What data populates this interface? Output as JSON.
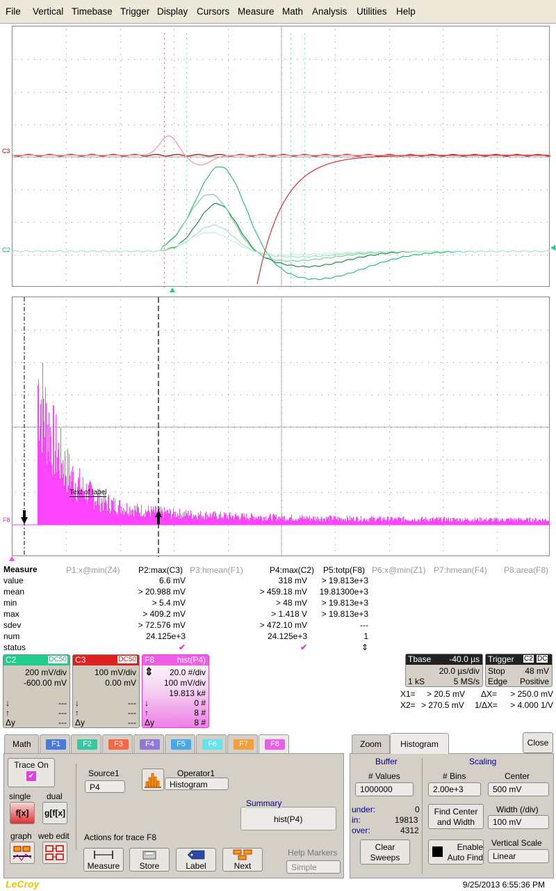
{
  "menu": [
    "File",
    "Vertical",
    "Timebase",
    "Trigger",
    "Display",
    "Cursors",
    "Measure",
    "Math",
    "Analysis",
    "Utilities",
    "Help"
  ],
  "traces": {
    "c3_label": "C3",
    "c2_label": "C2",
    "f8_label": "F8",
    "hist_annotation": "Text of label"
  },
  "measure": {
    "title": "Measure",
    "row_labels": [
      "value",
      "mean",
      "min",
      "max",
      "sdev",
      "num",
      "status"
    ],
    "columns": [
      {
        "header": "P1:x@min(Z4)",
        "active": false,
        "cells": [
          "",
          "",
          "",
          "",
          "",
          "",
          ""
        ]
      },
      {
        "header": "P2:max(C3)",
        "active": true,
        "cells": [
          "6.6 mV",
          "> 20.988 mV",
          "> 5.4 mV",
          "> 409.2 mV",
          "> 72.576 mV",
          "24.125e+3",
          "✔"
        ]
      },
      {
        "header": "P3:hmean(F1)",
        "active": false,
        "cells": [
          "",
          "",
          "",
          "",
          "",
          "",
          ""
        ]
      },
      {
        "header": "P4:max(C2)",
        "active": true,
        "cells": [
          "318 mV",
          "> 459.18 mV",
          "> 48 mV",
          "> 1.418 V",
          "> 472.10 mV",
          "24.125e+3",
          "✔"
        ]
      },
      {
        "header": "P5:totp(F8)",
        "active": true,
        "cells": [
          "> 19.813e+3",
          "19.81300e+3",
          "> 19.813e+3",
          "> 19.813e+3",
          "---",
          "1",
          "⇕"
        ]
      },
      {
        "header": "P6:x@min(Z1)",
        "active": false,
        "cells": [
          "",
          "",
          "",
          "",
          "",
          "",
          ""
        ]
      },
      {
        "header": "P7:hmean(F4)",
        "active": false,
        "cells": [
          "",
          "",
          "",
          "",
          "",
          "",
          ""
        ]
      },
      {
        "header": "P8:area(F8)",
        "active": false,
        "cells": [
          "",
          "",
          "",
          "",
          "",
          "",
          ""
        ]
      }
    ]
  },
  "descriptors": {
    "c2": {
      "name": "C2",
      "coupling": "DC50",
      "vdiv": "200 mV/div",
      "offset": "-600.00 mV",
      "down": "---",
      "up": "---",
      "dy": "---",
      "color": "#1fce8b"
    },
    "c3": {
      "name": "C3",
      "coupling": "DC50",
      "vdiv": "100 mV/div",
      "offset": "0.00 mV",
      "down": "---",
      "up": "---",
      "dy": "---",
      "color": "#e0201e"
    },
    "f8": {
      "name": "F8",
      "func": "hist(P4)",
      "l1": "20.0 #/div",
      "l2": "100 mV/div",
      "l3": "19.813 k#",
      "down": "0 #",
      "up": "8 #",
      "dy": "8 #",
      "color": "#ff44ff"
    }
  },
  "tbase": {
    "label": "Tbase",
    "delay": "-40.0 µs",
    "tdiv": "20.0 µs/div",
    "samples": "1 kS",
    "rate": "5 MS/s"
  },
  "trigger": {
    "label": "Trigger",
    "src": "C2",
    "coupling": "DC",
    "mode": "Stop",
    "level": "48 mV",
    "type": "Edge",
    "slope": "Positive"
  },
  "cursors": {
    "x1": "X1=",
    "x1v": "> 20.5 mV",
    "dx": "ΔX=",
    "dxv": "> 250.0 mV",
    "x2": "X2=",
    "x2v": "> 270.5 mV",
    "idx": "1/ΔX=",
    "idxv": "> 4.000 1/V"
  },
  "math_tabs": [
    {
      "label": "Math",
      "color": ""
    },
    {
      "label": "F1",
      "color": "#4a7bd8"
    },
    {
      "label": "F2",
      "color": "#35c9a0"
    },
    {
      "label": "F3",
      "color": "#f06a48"
    },
    {
      "label": "F4",
      "color": "#8f78d8"
    },
    {
      "label": "F5",
      "color": "#4aa8e8"
    },
    {
      "label": "F6",
      "color": "#5ee6f0"
    },
    {
      "label": "F7",
      "color": "#f0a040"
    },
    {
      "label": "F8",
      "color": "#f05ce8"
    }
  ],
  "math_panel": {
    "trace_on": "Trace On",
    "single": "single",
    "dual": "dual",
    "graph": "graph",
    "web_edit": "web edit",
    "source1_label": "Source1",
    "source1": "P4",
    "operator1_label": "Operator1",
    "operator1": "Histogram",
    "summary_label": "Summary",
    "summary": "hist(P4)",
    "actions": "Actions for trace F8",
    "btn_measure": "Measure",
    "btn_store": "Store",
    "btn_label": "Label",
    "btn_next": "Next",
    "help_markers": "Help Markers",
    "help_value": "Simple"
  },
  "hist_panel": {
    "tab_zoom": "Zoom",
    "tab_hist": "Histogram",
    "close": "Close",
    "buffer": "Buffer",
    "values_label": "# Values",
    "values": "1000000",
    "under_label": "under:",
    "under": "0",
    "in_label": "in:",
    "in": "19813",
    "over_label": "over:",
    "over": "4312",
    "clear": "Clear Sweeps",
    "scaling": "Scaling",
    "bins_label": "# Bins",
    "bins": "2.00e+3",
    "center_label": "Center",
    "center": "500 mV",
    "find": "Find Center and Width",
    "width_label": "Width (/div)",
    "width": "100 mV",
    "enable": "Enable Auto Find",
    "vscale_label": "Vertical Scale",
    "vscale": "Linear"
  },
  "footer": {
    "brand": "LeCroy",
    "timestamp": "9/25/2013 6:55:36 PM"
  }
}
